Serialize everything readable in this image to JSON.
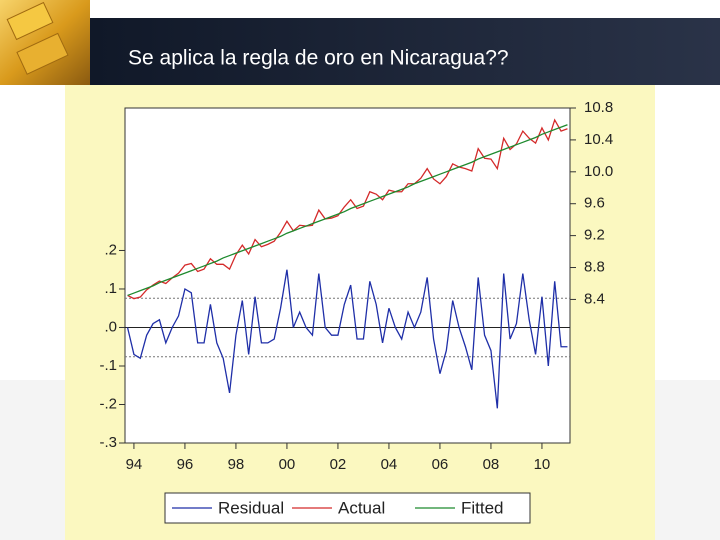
{
  "slide": {
    "title": "Se aplica la regla de oro en Nicaragua??"
  },
  "chart_data": {
    "type": "line",
    "x": [
      1993.75,
      1994,
      1994.25,
      1994.5,
      1994.75,
      1995,
      1995.25,
      1995.5,
      1995.75,
      1996,
      1996.25,
      1996.5,
      1996.75,
      1997,
      1997.25,
      1997.5,
      1997.75,
      1998,
      1998.25,
      1998.5,
      1998.75,
      1999,
      1999.25,
      1999.5,
      1999.75,
      2000,
      2000.25,
      2000.5,
      2000.75,
      2001,
      2001.25,
      2001.5,
      2001.75,
      2002,
      2002.25,
      2002.5,
      2002.75,
      2003,
      2003.25,
      2003.5,
      2003.75,
      2004,
      2004.25,
      2004.5,
      2004.75,
      2005,
      2005.25,
      2005.5,
      2005.75,
      2006,
      2006.25,
      2006.5,
      2006.75,
      2007,
      2007.25,
      2007.5,
      2007.75,
      2008,
      2008.25,
      2008.5,
      2008.75,
      2009,
      2009.25,
      2009.5,
      2009.75,
      2010,
      2010.25,
      2010.5,
      2010.75,
      2011
    ],
    "series": [
      {
        "name": "Residual",
        "color": "#1f2fa8",
        "axis": "y",
        "values": [
          0.0,
          -0.07,
          -0.08,
          -0.02,
          0.01,
          0.02,
          -0.04,
          0.0,
          0.03,
          0.1,
          0.09,
          -0.04,
          -0.04,
          0.06,
          -0.04,
          -0.08,
          -0.17,
          -0.02,
          0.07,
          -0.07,
          0.08,
          -0.04,
          -0.04,
          -0.03,
          0.05,
          0.15,
          0.0,
          0.04,
          0.0,
          -0.02,
          0.14,
          0.0,
          -0.02,
          -0.02,
          0.06,
          0.11,
          -0.03,
          -0.03,
          0.12,
          0.06,
          -0.04,
          0.05,
          0.0,
          -0.03,
          0.04,
          0.0,
          0.04,
          0.13,
          -0.03,
          -0.12,
          -0.06,
          0.07,
          0.0,
          -0.05,
          -0.11,
          0.13,
          -0.02,
          -0.06,
          -0.21,
          0.14,
          -0.03,
          0.01,
          0.14,
          0.02,
          -0.07,
          0.08,
          -0.1,
          0.12,
          -0.05,
          -0.05
        ]
      },
      {
        "name": "Actual",
        "color": "#d42a2a",
        "axis": "y2",
        "values": [
          8.45,
          8.41,
          8.43,
          8.52,
          8.58,
          8.63,
          8.6,
          8.67,
          8.73,
          8.83,
          8.85,
          8.75,
          8.78,
          8.91,
          8.84,
          8.84,
          8.78,
          8.96,
          9.08,
          8.97,
          9.15,
          9.06,
          9.09,
          9.13,
          9.24,
          9.38,
          9.26,
          9.33,
          9.32,
          9.33,
          9.52,
          9.41,
          9.42,
          9.45,
          9.56,
          9.65,
          9.54,
          9.57,
          9.75,
          9.72,
          9.65,
          9.77,
          9.75,
          9.75,
          9.85,
          9.85,
          9.92,
          10.04,
          9.91,
          9.85,
          9.94,
          10.1,
          10.06,
          10.04,
          10.01,
          10.29,
          10.17,
          10.16,
          10.04,
          10.42,
          10.28,
          10.35,
          10.51,
          10.42,
          10.36,
          10.55,
          10.4,
          10.65,
          10.51,
          10.54
        ]
      },
      {
        "name": "Fitted",
        "color": "#1e8a2e",
        "axis": "y2",
        "values": [
          8.45,
          8.48,
          8.51,
          8.54,
          8.57,
          8.61,
          8.64,
          8.67,
          8.7,
          8.73,
          8.76,
          8.79,
          8.82,
          8.85,
          8.88,
          8.92,
          8.95,
          8.98,
          9.01,
          9.04,
          9.07,
          9.1,
          9.13,
          9.16,
          9.19,
          9.23,
          9.26,
          9.29,
          9.32,
          9.35,
          9.38,
          9.41,
          9.44,
          9.47,
          9.5,
          9.54,
          9.57,
          9.6,
          9.63,
          9.66,
          9.69,
          9.72,
          9.75,
          9.78,
          9.81,
          9.85,
          9.88,
          9.91,
          9.94,
          9.97,
          10.0,
          10.03,
          10.06,
          10.09,
          10.12,
          10.16,
          10.19,
          10.22,
          10.25,
          10.28,
          10.31,
          10.34,
          10.37,
          10.4,
          10.43,
          10.47,
          10.5,
          10.53,
          10.56,
          10.59
        ]
      }
    ],
    "xlim": [
      1993.65,
      2011.1
    ],
    "xticks": [
      {
        "value": 1994,
        "label": "94"
      },
      {
        "value": 1996,
        "label": "96"
      },
      {
        "value": 1998,
        "label": "98"
      },
      {
        "value": 2000,
        "label": "00"
      },
      {
        "value": 2002,
        "label": "02"
      },
      {
        "value": 2004,
        "label": "04"
      },
      {
        "value": 2006,
        "label": "06"
      },
      {
        "value": 2008,
        "label": "08"
      },
      {
        "value": 2010,
        "label": "10"
      }
    ],
    "ylim": [
      -0.3,
      0.57
    ],
    "yticks": [
      {
        "value": 0.2,
        "label": ".2"
      },
      {
        "value": 0.1,
        "label": ".1"
      },
      {
        "value": 0,
        "label": ".0"
      },
      {
        "value": -0.1,
        "label": "-.1"
      },
      {
        "value": -0.2,
        "label": "-.2"
      },
      {
        "value": -0.3,
        "label": "-.3"
      }
    ],
    "y2lim": [
      6.6,
      10.8
    ],
    "y2ticks": [
      10.8,
      10.4,
      {
        "value": 10.0,
        "label": "10.0"
      },
      9.6,
      9.2,
      8.8,
      8.4
    ],
    "reference_lines": [
      0,
      0.076,
      -0.076
    ],
    "legend": "bottom"
  }
}
